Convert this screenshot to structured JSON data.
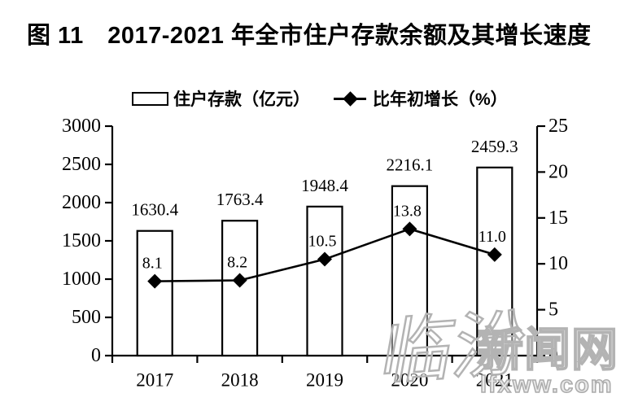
{
  "figure": {
    "title": "图 11　2017-2021 年全市住户存款余额及其增长速度"
  },
  "legend": {
    "bar_label": "住户存款（亿元）",
    "line_label": "比年初增长（%）"
  },
  "watermark": {
    "script_part": "临汾",
    "outline_part": "新闻网",
    "site_url": "lfxww.com"
  },
  "colors": {
    "ink": "#000000",
    "bar_fill": "#ffffff",
    "watermark_gray": "#b3b3b3"
  },
  "chart_data": {
    "type": "bar",
    "title": "图 11 2017-2021 年全市住户存款余额及其增长速度",
    "categories": [
      "2017",
      "2018",
      "2019",
      "2020",
      "2021"
    ],
    "series": [
      {
        "name": "住户存款（亿元）",
        "type": "bar",
        "axis": "left",
        "values": [
          1630.4,
          1763.4,
          1948.4,
          2216.1,
          2459.3
        ],
        "labels": [
          "1630.4",
          "1763.4",
          "1948.4",
          "2216.1",
          "2459.3"
        ]
      },
      {
        "name": "比年初增长（%）",
        "type": "line",
        "axis": "right",
        "marker": "diamond",
        "values": [
          8.1,
          8.2,
          10.5,
          13.8,
          11.0
        ],
        "labels": [
          "8.1",
          "8.2",
          "10.5",
          "13.8",
          "11.0"
        ]
      }
    ],
    "left_axis": {
      "min": 0,
      "max": 3000,
      "step": 500,
      "ticks": [
        0,
        500,
        1000,
        1500,
        2000,
        2500,
        3000
      ]
    },
    "right_axis": {
      "min": 0,
      "max": 25,
      "step": 5,
      "ticks": [
        0,
        5,
        10,
        15,
        20,
        25
      ]
    },
    "grid": false,
    "legend_position": "top"
  }
}
